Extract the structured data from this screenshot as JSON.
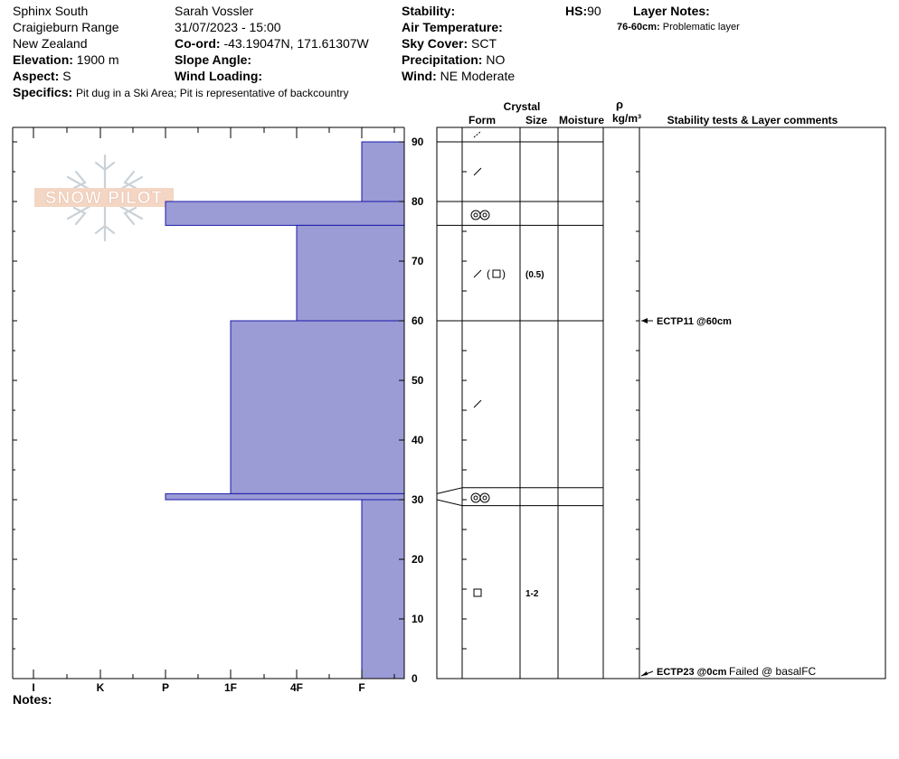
{
  "header": {
    "location": [
      "Sphinx South",
      "Craigieburn Range",
      "New Zealand"
    ],
    "elevation_label": "Elevation:",
    "elevation": "1900 m",
    "aspect_label": "Aspect:",
    "aspect": "S",
    "specifics_label": "Specifics:",
    "specifics": "Pit dug in a Ski Area; Pit is representative of backcountry",
    "observer": "Sarah Vossler",
    "datetime": "31/07/2023 - 15:00",
    "coord_label": "Co-ord:",
    "coord": "-43.19047N, 171.61307W",
    "slope_label": "Slope Angle:",
    "wind_loading_label": "Wind Loading:",
    "stability_label": "Stability:",
    "air_temp_label": "Air Temperature:",
    "sky_label": "Sky Cover:",
    "sky": "SCT",
    "precip_label": "Precipitation:",
    "precip": "NO",
    "wind_label": "Wind:",
    "wind": "NE Moderate",
    "hs_label": "HS:",
    "hs": "90",
    "layer_notes_label": "Layer Notes:",
    "layer_note_range": "76-60cm:",
    "layer_note_text": "Problematic layer"
  },
  "watermark": {
    "text": "SNOW PILOT"
  },
  "notes_label": "Notes:",
  "table_headers": {
    "crystal": "Crystal",
    "form": "Form",
    "size": "Size",
    "moisture": "Moisture",
    "rho": "ρ",
    "density_unit": "kg/m³",
    "stability": "Stability tests & Layer comments"
  },
  "chart_data": {
    "type": "bar",
    "hardness_categories": [
      "I",
      "K",
      "P",
      "1F",
      "4F",
      "F"
    ],
    "y_ticks": [
      0,
      10,
      20,
      30,
      40,
      50,
      60,
      70,
      80,
      90
    ],
    "ylim": [
      0,
      90
    ],
    "layers": [
      {
        "top": 90,
        "bottom": 80,
        "hardness": "F"
      },
      {
        "top": 80,
        "bottom": 76,
        "hardness": "P"
      },
      {
        "top": 76,
        "bottom": 60,
        "hardness": "4F"
      },
      {
        "top": 60,
        "bottom": 31,
        "hardness": "1F"
      },
      {
        "top": 31,
        "bottom": 30,
        "hardness": "P"
      },
      {
        "top": 30,
        "bottom": 0,
        "hardness": "F"
      }
    ],
    "grain_layers": [
      {
        "top": 90,
        "bottom": 80,
        "form": "dffd",
        "size": ""
      },
      {
        "top": 80,
        "bottom": 76,
        "form": "mf",
        "size": ""
      },
      {
        "top": 76,
        "bottom": 60,
        "form": "df-fc",
        "size": "(0.5)"
      },
      {
        "top": 60,
        "bottom": 32,
        "form": "df",
        "size": ""
      },
      {
        "top": 32,
        "bottom": 29,
        "form": "mf",
        "size": ""
      },
      {
        "top": 29,
        "bottom": 0,
        "form": "fc",
        "size": "1-2"
      }
    ],
    "tests": [
      {
        "depth": 60,
        "result": "ECTP11 @60cm",
        "comment": ""
      },
      {
        "depth": 0,
        "result": "ECTP23 @0cm",
        "comment": "Failed @ basalFC"
      }
    ]
  }
}
